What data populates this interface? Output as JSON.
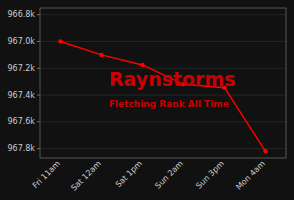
{
  "chart_data": {
    "type": "line",
    "title": "Raynstorms",
    "subtitle": "Fletching Rank All Time",
    "categories": [
      "Fri 11am",
      "Sat 12am",
      "Sat 1pm",
      "Sun 2am",
      "Sun 3pm",
      "Mon 4am"
    ],
    "values": [
      967000,
      967100,
      967175,
      967320,
      967345,
      967820
    ],
    "color": "#ff0000",
    "marker": "circle",
    "ylim": [
      967870,
      966750
    ],
    "yticks": [
      {
        "value": 966800,
        "label": "966.8k"
      },
      {
        "value": 967000,
        "label": "967.0k"
      },
      {
        "value": 967200,
        "label": "967.2k"
      },
      {
        "value": 967400,
        "label": "967.4k"
      },
      {
        "value": 967600,
        "label": "967.6k"
      },
      {
        "value": 967800,
        "label": "967.8k"
      }
    ],
    "grid": true
  }
}
